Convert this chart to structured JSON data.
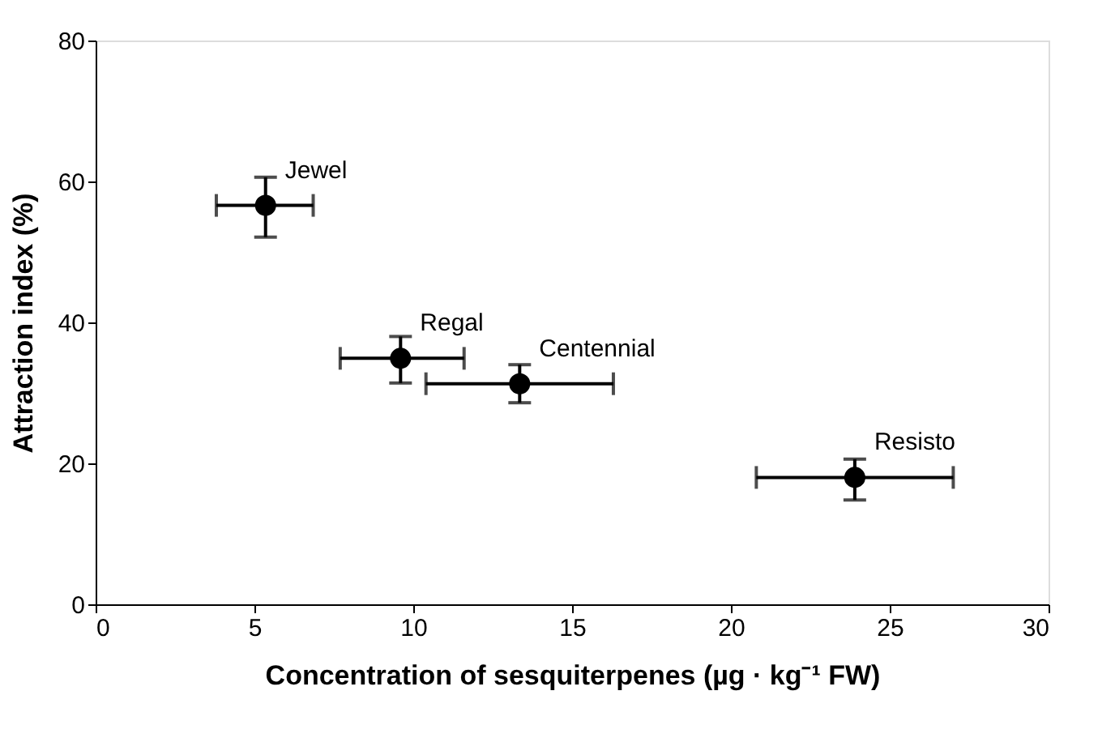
{
  "chart_data": {
    "type": "scatter",
    "xlabel": "Concentration of sesquiterpenes (µg · kg⁻¹ FW)",
    "ylabel": "Attraction index (%)",
    "x": [
      5.35,
      9.6,
      13.35,
      23.9
    ],
    "values": [
      56.6,
      34.9,
      31.3,
      18.0
    ],
    "errors": [
      [
        52.1,
        60.6
      ],
      [
        31.4,
        38.0
      ],
      [
        28.6,
        34.0
      ],
      [
        14.8,
        20.6
      ]
    ],
    "xerrors": [
      [
        3.8,
        6.85
      ],
      [
        7.7,
        11.6
      ],
      [
        10.4,
        16.3
      ],
      [
        20.8,
        27.0
      ]
    ],
    "color": "#000000",
    "marker": "circle",
    "xlim": [
      0,
      30
    ],
    "xticks": [
      0,
      5,
      10,
      15,
      20,
      25,
      30
    ],
    "ylim": [
      0,
      80
    ],
    "yticks": [
      0,
      20,
      40,
      60,
      80
    ],
    "grid": false,
    "annotations": [
      {
        "text": "Jewel",
        "x": 5.35,
        "y": 56.6
      },
      {
        "text": "Regal",
        "x": 9.6,
        "y": 34.9
      },
      {
        "text": "Centennial",
        "x": 13.35,
        "y": 31.3
      },
      {
        "text": "Resisto",
        "x": 23.9,
        "y": 18.0
      }
    ]
  }
}
